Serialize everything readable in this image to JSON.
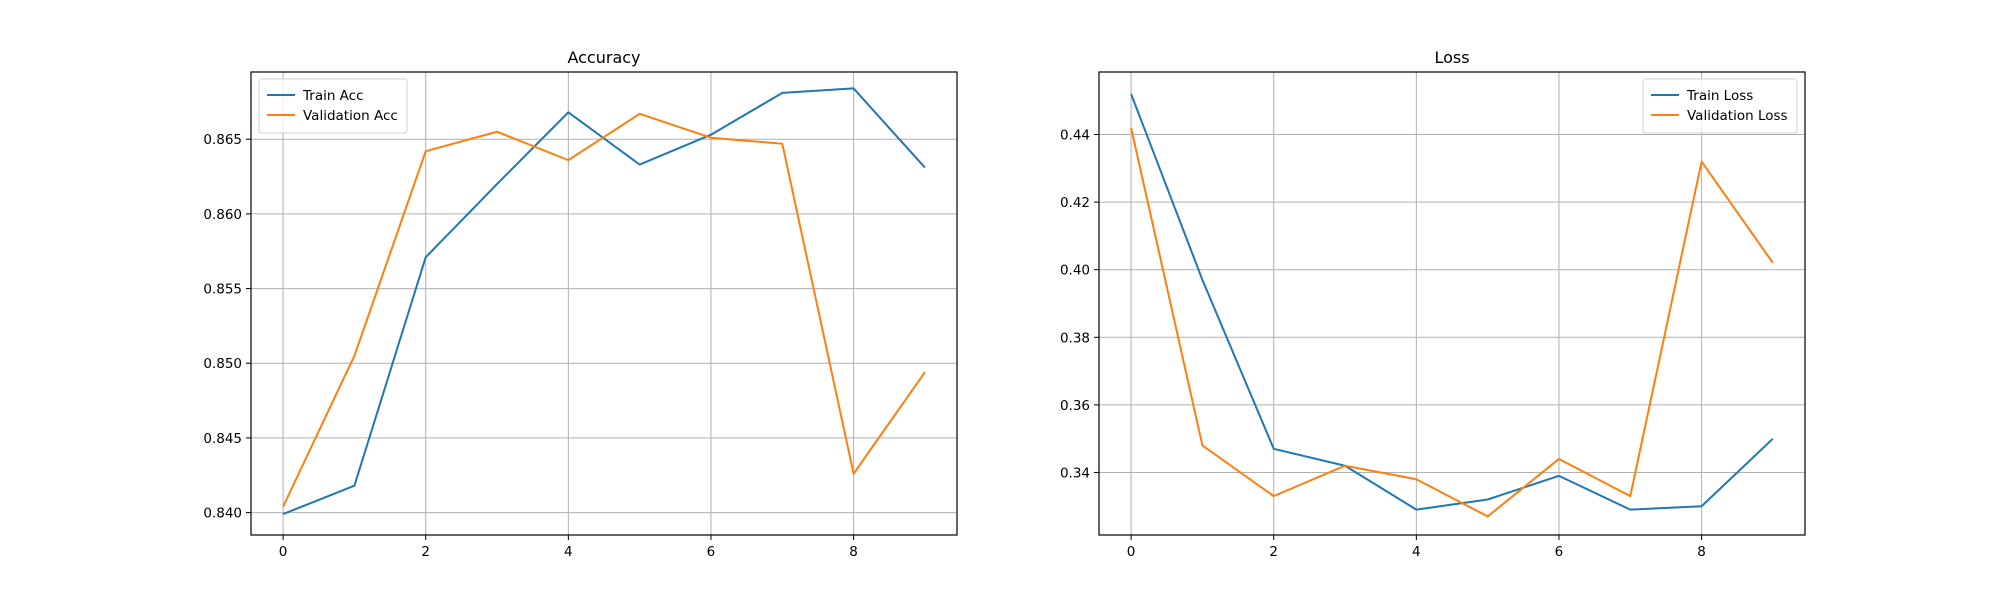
{
  "chart_data": [
    {
      "type": "line",
      "title": "Accuracy",
      "xlabel": "",
      "ylabel": "",
      "x": [
        0,
        1,
        2,
        3,
        4,
        5,
        6,
        7,
        8,
        9
      ],
      "xlim": [
        -0.45,
        9.45
      ],
      "ylim": [
        0.8385,
        0.8695
      ],
      "xticks": [
        0,
        2,
        4,
        6,
        8
      ],
      "yticks": [
        0.84,
        0.845,
        0.85,
        0.855,
        0.86,
        0.865
      ],
      "ytick_labels": [
        "0.840",
        "0.845",
        "0.850",
        "0.855",
        "0.860",
        "0.865"
      ],
      "grid": true,
      "legend_position": "top-left",
      "series": [
        {
          "name": "Train Acc",
          "color": "#1f77b4",
          "values": [
            0.8399,
            0.8418,
            0.8571,
            0.862,
            0.8668,
            0.8633,
            0.8653,
            0.8681,
            0.8684,
            0.8631
          ]
        },
        {
          "name": "Validation Acc",
          "color": "#ff7f0e",
          "values": [
            0.8404,
            0.8505,
            0.8642,
            0.8655,
            0.8636,
            0.8667,
            0.8651,
            0.8647,
            0.8426,
            0.8494
          ]
        }
      ]
    },
    {
      "type": "line",
      "title": "Loss",
      "xlabel": "",
      "ylabel": "",
      "x": [
        0,
        1,
        2,
        3,
        4,
        5,
        6,
        7,
        8,
        9
      ],
      "xlim": [
        -0.45,
        9.45
      ],
      "ylim": [
        0.3215,
        0.4585
      ],
      "xticks": [
        0,
        2,
        4,
        6,
        8
      ],
      "yticks": [
        0.34,
        0.36,
        0.38,
        0.4,
        0.42,
        0.44
      ],
      "ytick_labels": [
        "0.34",
        "0.36",
        "0.38",
        "0.40",
        "0.42",
        "0.44"
      ],
      "grid": true,
      "legend_position": "top-right",
      "series": [
        {
          "name": "Train Loss",
          "color": "#1f77b4",
          "values": [
            0.452,
            0.397,
            0.347,
            0.342,
            0.329,
            0.332,
            0.339,
            0.329,
            0.33,
            0.35
          ]
        },
        {
          "name": "Validation Loss",
          "color": "#ff7f0e",
          "values": [
            0.442,
            0.348,
            0.333,
            0.342,
            0.338,
            0.327,
            0.344,
            0.333,
            0.432,
            0.402
          ]
        }
      ]
    }
  ]
}
